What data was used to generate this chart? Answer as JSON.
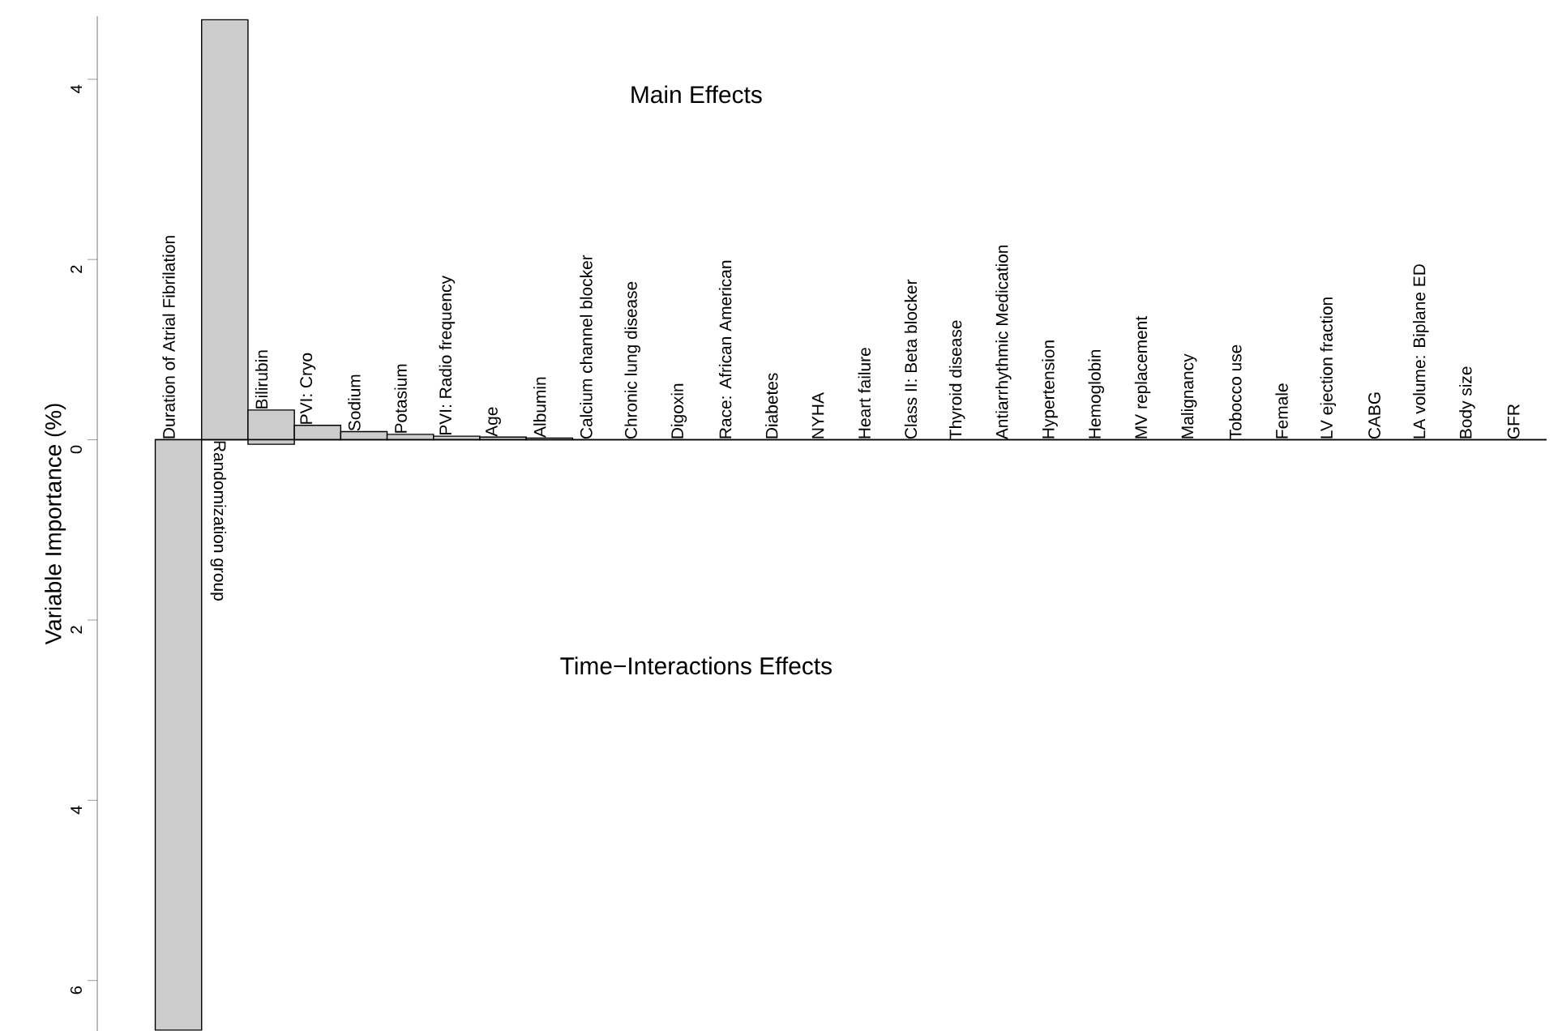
{
  "chart_data": {
    "type": "bar",
    "ylabel": "Variable Importance (%)",
    "categories": [
      "Duration of Atrial Fibrilation",
      "Randomization group",
      "Bilirubin",
      "PVI: Cryo",
      "Sodium",
      "Potasium",
      "PVI: Radio frequency",
      "Age",
      "Albumin",
      "Calcium channel blocker",
      "Chronic lung disease",
      "Digoxin",
      "Race: African American",
      "Diabetes",
      "NYHA",
      "Heart failure",
      "Class II: Beta blocker",
      "Thyroid disease",
      "Antiarrhythmic Medication",
      "Hypertension",
      "Hemoglobin",
      "MV replacement",
      "Malignancy",
      "Tobocco use",
      "Female",
      "LV ejection fraction",
      "CABG",
      "LA volume: Biplane ED",
      "Body size",
      "GFR"
    ],
    "series": [
      {
        "color": "#cccccc",
        "values": [
          0,
          4.66,
          0.33,
          0.16,
          0.09,
          0.06,
          0.04,
          0.03,
          0.02,
          0,
          0,
          0,
          0,
          0,
          0,
          0,
          0,
          0,
          0,
          0,
          0,
          0,
          0,
          0,
          0,
          0,
          0,
          0,
          0,
          0
        ]
      },
      {
        "color": "#cccccc",
        "values": [
          -6.55,
          0,
          -0.05,
          0,
          0,
          0,
          0,
          0,
          0,
          0,
          0,
          0,
          0,
          0,
          0,
          0,
          0,
          0,
          0,
          0,
          0,
          0,
          0,
          0,
          0,
          0,
          0,
          0,
          0,
          0
        ]
      }
    ],
    "ylim": [
      -6.56,
      4.7
    ],
    "yticks": [
      4,
      2,
      0,
      {
        "value": -2,
        "label": "2"
      },
      {
        "value": -4,
        "label": "4"
      },
      {
        "value": -6,
        "label": "6"
      }
    ],
    "annotations": [
      "Main Effects",
      "Time−Interactions Effects"
    ]
  }
}
